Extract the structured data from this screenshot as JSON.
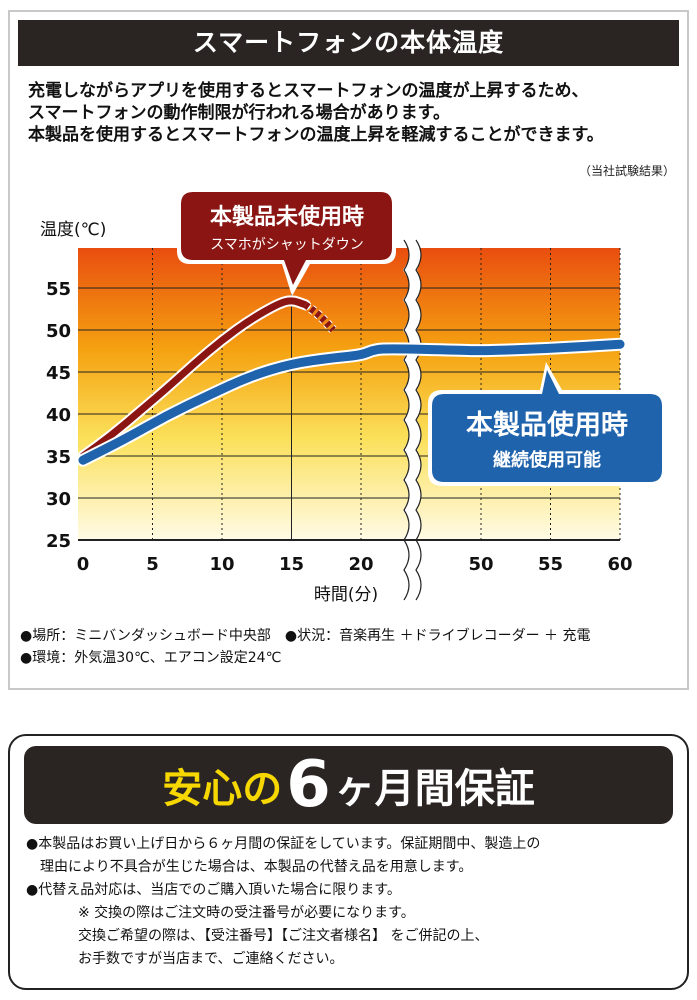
{
  "header": {
    "title": "スマートフォンの本体温度"
  },
  "intro": [
    "充電しながらアプリを使用するとスマートフォンの温度が上昇するため、",
    "スマートフォンの動作制限が行われる場合があります。",
    "本製品を使用するとスマートフォンの温度上昇を軽減することができます。"
  ],
  "note": "（当社試験結果）",
  "chart_data": {
    "type": "line",
    "ylabel": "温度(℃)",
    "xlabel": "時間(分)",
    "xticks": [
      "0",
      "5",
      "10",
      "15",
      "20",
      "50",
      "55",
      "60"
    ],
    "yticks": [
      "25",
      "30",
      "35",
      "40",
      "45",
      "50",
      "55"
    ],
    "ylim": [
      25,
      60
    ],
    "axis_break": "between 20 and 50",
    "series": [
      {
        "name": "本製品未使用時",
        "sublabel": "スマホがシャットダウン",
        "color": "#8a1512",
        "points": [
          [
            0,
            35
          ],
          [
            2,
            37.4
          ],
          [
            4,
            40.2
          ],
          [
            6,
            43
          ],
          [
            8,
            46
          ],
          [
            10,
            48.8
          ],
          [
            12,
            51.2
          ],
          [
            14,
            53.1
          ],
          [
            15,
            53.6
          ],
          [
            16,
            53
          ]
        ],
        "dashed_points": [
          [
            16,
            53
          ],
          [
            17,
            51.8
          ],
          [
            18,
            50
          ]
        ]
      },
      {
        "name": "本製品使用時",
        "sublabel": "継続使用可能",
        "color": "#1f63ad",
        "points": [
          [
            0,
            34.5
          ],
          [
            3,
            37
          ],
          [
            6,
            39.8
          ],
          [
            9,
            42.2
          ],
          [
            12,
            44.5
          ],
          [
            15,
            46
          ],
          [
            18,
            46.7
          ],
          [
            20,
            47
          ],
          [
            23,
            47.6
          ],
          [
            26,
            47.8
          ],
          [
            45,
            47.6
          ],
          [
            50,
            47.5
          ],
          [
            55,
            47.8
          ],
          [
            60,
            48.3
          ]
        ]
      }
    ]
  },
  "conditions": [
    "●場所：ミニバンダッシュボード中央部　●状況：音楽再生 ＋ドライブレコーダー ＋ 充電",
    "●環境：外気温30℃、エアコン設定24℃"
  ],
  "warranty": {
    "title_pre": "安心の",
    "title_number": "6",
    "title_post": "ヶ月間保証",
    "lines": [
      "●本製品はお買い上げ日から６ヶ月間の保証をしています。保証期間中、製造上の",
      "理由により不具合が生じた場合は、本製品の代替え品を用意します。",
      "●代替え品対応は、当店でのご購入頂いた場合に限ります。",
      "※ 交換の際はご注文時の受注番号が必要になります。",
      "交換ご希望の際は、【受注番号】【ご注文者様名】 をご併記の上、",
      "お手数ですが当店まで、ご連絡ください。"
    ]
  }
}
